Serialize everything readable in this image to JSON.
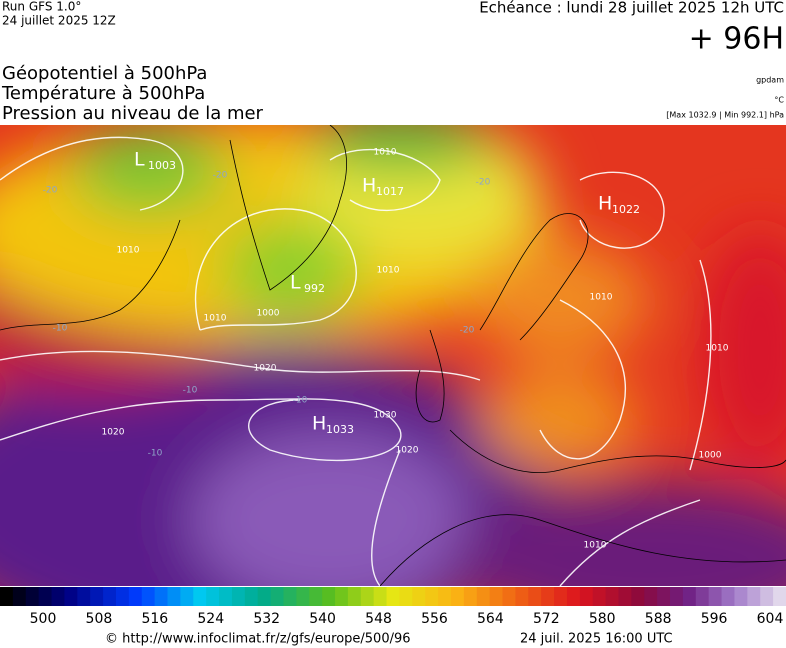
{
  "header": {
    "run": "Run GFS 1.0°",
    "run_date": "24 juillet 2025 12Z",
    "echeance": "Echéance : lundi 28 juillet 2025 12h UTC",
    "lead": "+ 96H"
  },
  "titles": [
    "Géopotentiel à 500hPa",
    "Température à 500hPa",
    "Pression au niveau de la mer"
  ],
  "units": {
    "geo": "gpdam",
    "temp": "°C",
    "pressure": "[Max 1032.9 | Min 992.1] hPa"
  },
  "centers": [
    {
      "type": "L",
      "value": "1003"
    },
    {
      "type": "H",
      "value": "1017"
    },
    {
      "type": "H",
      "value": "1022"
    },
    {
      "type": "L",
      "value": "992"
    },
    {
      "type": "H",
      "value": "1033"
    }
  ],
  "isobar_labels": [
    "1010",
    "1010",
    "1010",
    "1000",
    "1020",
    "1020",
    "1030",
    "1020",
    "1010",
    "1010",
    "1000",
    "1010",
    "1010"
  ],
  "temp_labels": [
    "-20",
    "-20",
    "-20",
    "-20",
    "-10",
    "-10",
    "-10",
    "-10"
  ],
  "colorbar": {
    "ticks": [
      500,
      508,
      516,
      524,
      532,
      540,
      548,
      556,
      564,
      572,
      580,
      588,
      596,
      604
    ]
  },
  "footer": {
    "url": "© http://www.infoclimat.fr/z/gfs/europe/500/96",
    "date": "24 juil. 2025 16:00 UTC"
  }
}
